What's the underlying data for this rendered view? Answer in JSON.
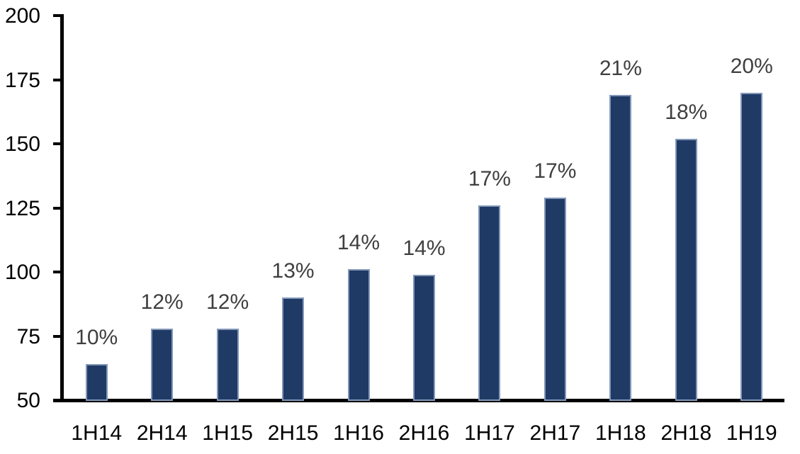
{
  "chart_data": {
    "type": "bar",
    "title": "",
    "xlabel": "",
    "ylabel": "",
    "categories": [
      "1H14",
      "2H14",
      "1H15",
      "2H15",
      "1H16",
      "2H16",
      "1H17",
      "2H17",
      "1H18",
      "2H18",
      "1H19"
    ],
    "values": [
      64,
      78,
      78,
      90,
      101,
      99,
      126,
      129,
      169,
      152,
      170
    ],
    "bar_labels": [
      "10%",
      "12%",
      "12%",
      "13%",
      "14%",
      "14%",
      "17%",
      "17%",
      "21%",
      "18%",
      "20%"
    ],
    "ylim": [
      50,
      200
    ],
    "yticks": [
      200,
      175,
      150,
      125,
      100,
      75,
      50
    ],
    "grid": false,
    "legend_position": "none",
    "colors": {
      "bar_fill": "#203A66",
      "bar_border": "#8397B8",
      "data_label_text": "#3F3F3F",
      "axis_text": "#000000",
      "axis_line": "#000000",
      "background": "#FFFFFF"
    }
  }
}
